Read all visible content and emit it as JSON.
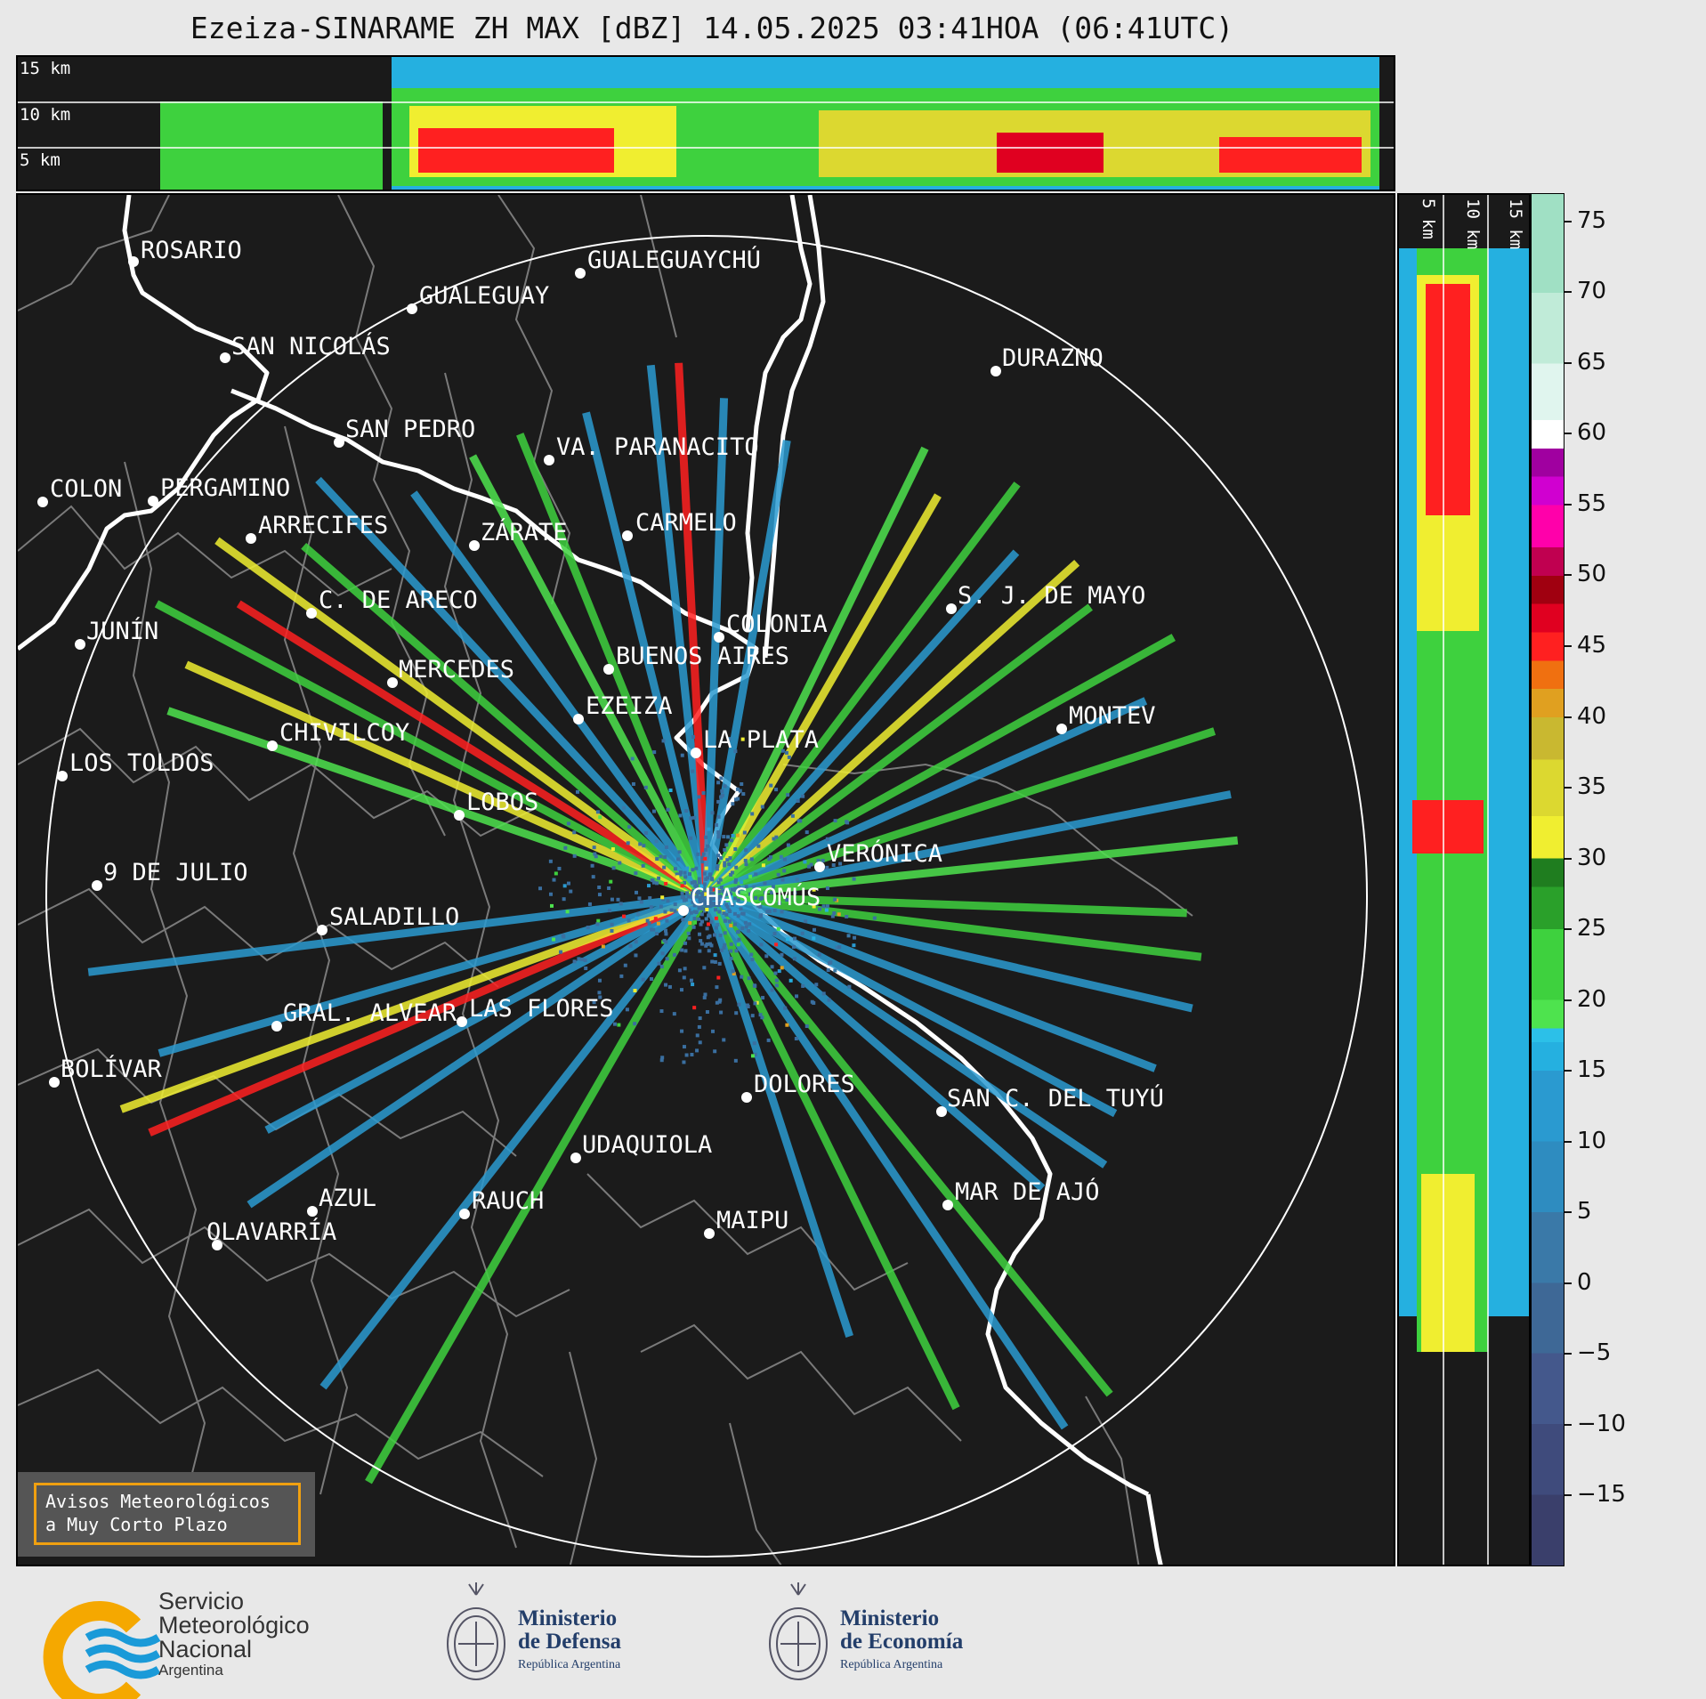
{
  "header": {
    "title": "Ezeiza-SINARAME ZH MAX [dBZ] 14.05.2025 03:41HOA (06:41UTC)"
  },
  "top_profile": {
    "height_labels": [
      "15 km",
      "10 km",
      "5 km"
    ]
  },
  "side_profile": {
    "height_labels": [
      "5 km",
      "10 km",
      "15 km"
    ]
  },
  "colorbar": {
    "ticks": [
      "75",
      "70",
      "65",
      "60",
      "55",
      "50",
      "45",
      "40",
      "35",
      "30",
      "25",
      "20",
      "15",
      "10",
      "5",
      "0",
      "−5",
      "−10",
      "−15"
    ]
  },
  "cities": [
    {
      "name": "ROSARIO"
    },
    {
      "name": "GUALEGUAYCHÚ"
    },
    {
      "name": "GUALEGUAY"
    },
    {
      "name": "SAN NICOLÁS"
    },
    {
      "name": "DURAZNO"
    },
    {
      "name": "SAN PEDRO"
    },
    {
      "name": "VA. PARANACITO"
    },
    {
      "name": "COLON"
    },
    {
      "name": "PERGAMINO"
    },
    {
      "name": "CARMELO"
    },
    {
      "name": "ARRECIFES"
    },
    {
      "name": "ZÁRATE"
    },
    {
      "name": "S. J. DE MAYO"
    },
    {
      "name": "C. DE ARECO"
    },
    {
      "name": "COLONIA"
    },
    {
      "name": "JUNÍN"
    },
    {
      "name": "MERCEDES"
    },
    {
      "name": "BUENOS AIRES"
    },
    {
      "name": "EZEIZA"
    },
    {
      "name": "MONTEV"
    },
    {
      "name": "CHIVILCOY"
    },
    {
      "name": "LA PLATA"
    },
    {
      "name": "LOS TOLDOS"
    },
    {
      "name": "LOBOS"
    },
    {
      "name": "VERÓNICA"
    },
    {
      "name": "9 DE JULIO"
    },
    {
      "name": "CHASCOMÚS"
    },
    {
      "name": "SALADILLO"
    },
    {
      "name": "GRAL. ALVEAR"
    },
    {
      "name": "LAS FLORES"
    },
    {
      "name": "BOLÍVAR"
    },
    {
      "name": "DOLORES"
    },
    {
      "name": "SAN C. DEL TUYÚ"
    },
    {
      "name": "UDAQUIOLA"
    },
    {
      "name": "MAR DE AJÓ"
    },
    {
      "name": "AZUL"
    },
    {
      "name": "RAUCH"
    },
    {
      "name": "OLAVARRÍA"
    },
    {
      "name": "MAIPU"
    }
  ],
  "banner": {
    "line1": "Avisos Meteorológicos",
    "line2": "a Muy Corto Plazo"
  },
  "footer": {
    "smn": {
      "line1": "Servicio",
      "line2": "Meteorológico",
      "line3": "Nacional",
      "line4": "Argentina"
    },
    "defensa": {
      "line1": "Ministerio",
      "line2": "de Defensa",
      "line3": "República Argentina"
    },
    "economia": {
      "line1": "Ministerio",
      "line2": "de Economía",
      "line3": "República Argentina"
    }
  },
  "colors": {
    "background": "#1b1b1b",
    "range_ring": "#ffffff",
    "coast": "#ffffff",
    "borders": "#808080",
    "accent_orange": "#f0a010",
    "smn_blue": "#1a9ad8",
    "smn_yellow": "#f5a800"
  }
}
